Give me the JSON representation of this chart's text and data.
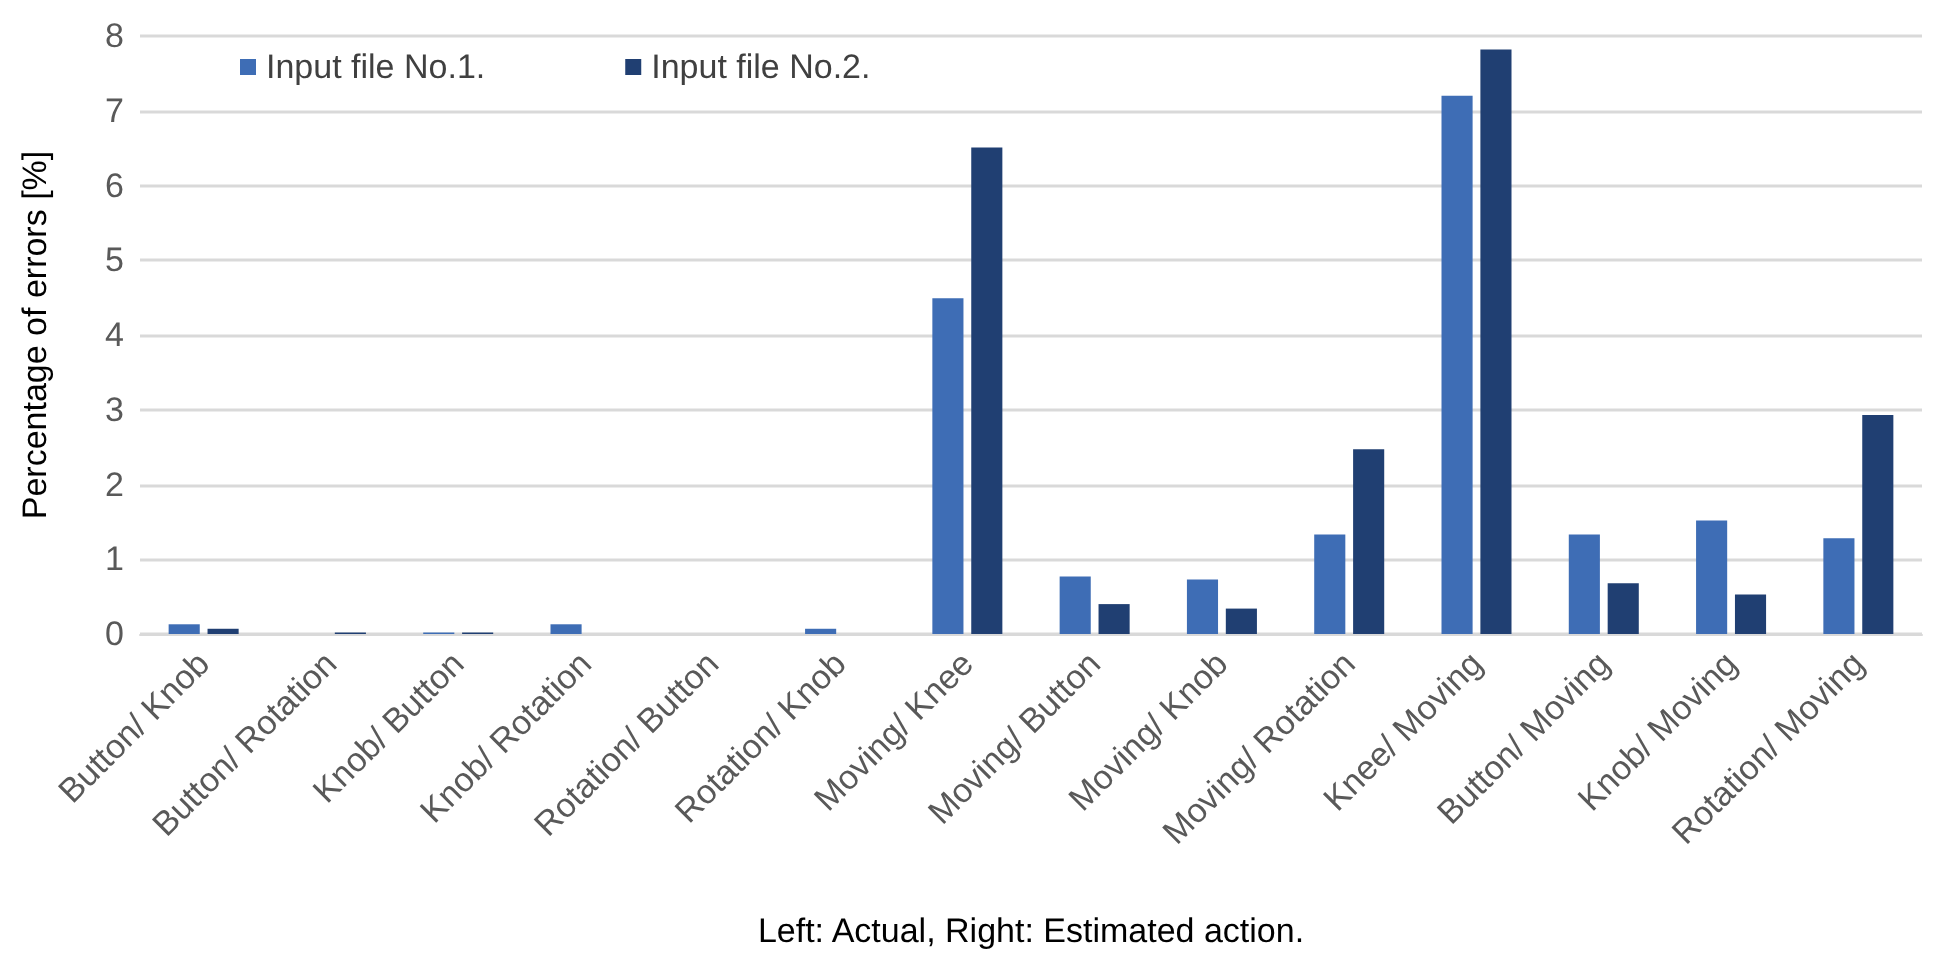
{
  "chart_data": {
    "type": "bar",
    "xlabel": "Left: Actual, Right: Estimated action.",
    "ylabel": "Percentage of errors [%]",
    "categories": [
      "Button/ Knob",
      "Button/ Rotation",
      "Knob/ Button",
      "Knob/ Rotation",
      "Rotation/ Button",
      "Rotation/ Knob",
      "Moving/ Knee",
      "Moving/ Button",
      "Moving/ Knob",
      "Moving/ Rotation",
      "Knee/ Moving",
      "Button/ Moving",
      "Knob/ Moving",
      "Rotation/ Moving"
    ],
    "series": [
      {
        "name": "Input file No.1.",
        "color": "#3e6db5",
        "values": [
          0.13,
          0,
          0.02,
          0.13,
          0,
          0.07,
          4.49,
          0.77,
          0.73,
          1.33,
          7.2,
          1.33,
          1.52,
          1.28
        ]
      },
      {
        "name": "Input file No.2.",
        "color": "#203f72",
        "values": [
          0.07,
          0.02,
          0.02,
          0,
          0,
          0,
          6.51,
          0.4,
          0.34,
          2.47,
          7.82,
          0.68,
          0.53,
          2.93
        ]
      }
    ],
    "ylim": [
      0,
      8
    ],
    "yticks": [
      0,
      1,
      2,
      3,
      4,
      5,
      6,
      7,
      8
    ],
    "grid": "y",
    "legend": "top left"
  }
}
